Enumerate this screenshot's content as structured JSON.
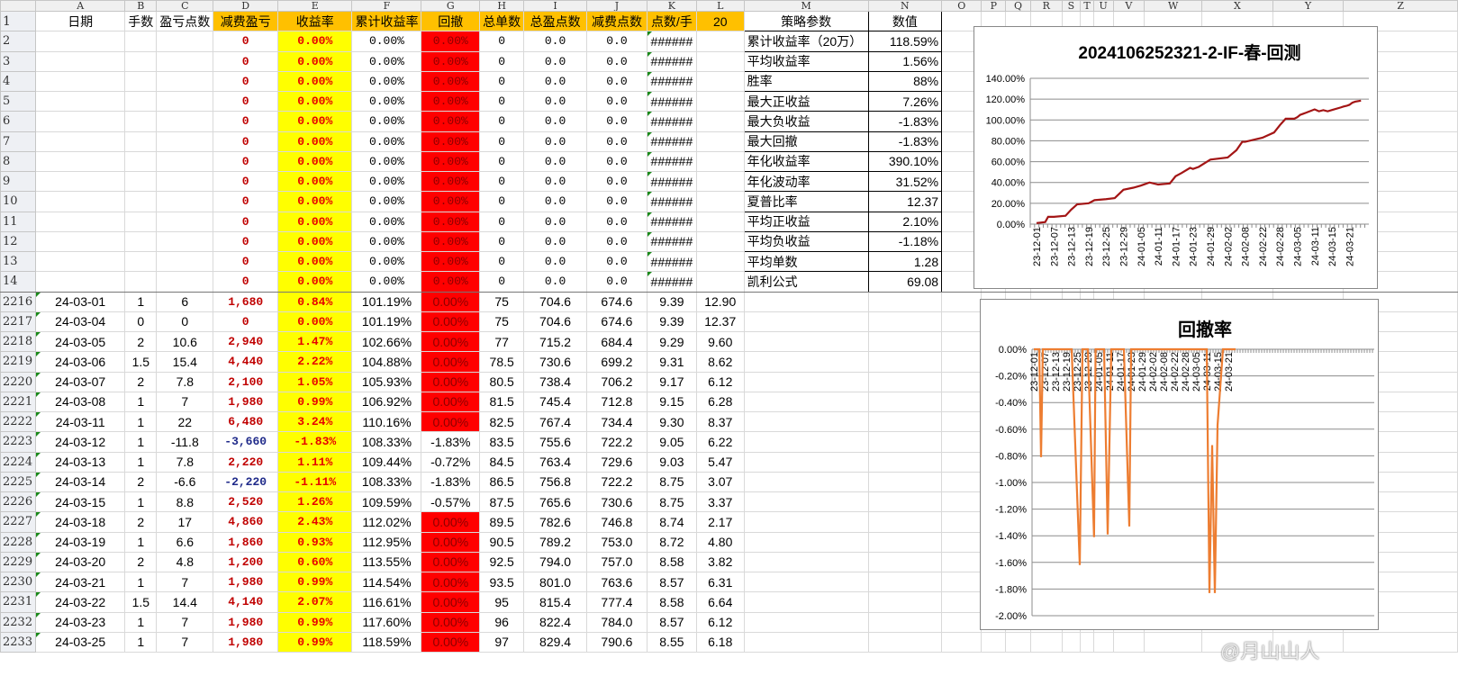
{
  "columns": [
    "A",
    "B",
    "C",
    "D",
    "E",
    "F",
    "G",
    "H",
    "I",
    "J",
    "K",
    "L",
    "M",
    "N",
    "O",
    "P",
    "Q",
    "R",
    "S",
    "T",
    "U",
    "V",
    "W",
    "X",
    "Y",
    "Z"
  ],
  "header_row": {
    "row": "1",
    "cells": [
      "日期",
      "手数",
      "盈亏点数",
      "减费盈亏",
      "收益率",
      "累计收益率",
      "回撤",
      "总单数",
      "总盈点数",
      "减费点数",
      "点数/手",
      "20"
    ]
  },
  "params": {
    "header": [
      "策略参数",
      "数值"
    ],
    "items": [
      {
        "label": "累计收益率（20万）",
        "value": "118.59%"
      },
      {
        "label": "平均收益率",
        "value": "1.56%"
      },
      {
        "label": "胜率",
        "value": "88%"
      },
      {
        "label": "最大正收益",
        "value": "7.26%"
      },
      {
        "label": "最大负收益",
        "value": "-1.83%"
      },
      {
        "label": "最大回撤",
        "value": "-1.83%"
      },
      {
        "label": "年化收益率",
        "value": "390.10%"
      },
      {
        "label": "年化波动率",
        "value": "31.52%"
      },
      {
        "label": "夏普比率",
        "value": "12.37"
      },
      {
        "label": "平均正收益",
        "value": "2.10%"
      },
      {
        "label": "平均负收益",
        "value": "-1.18%"
      },
      {
        "label": "平均单数",
        "value": "1.28"
      },
      {
        "label": "凯利公式",
        "value": "69.08"
      }
    ]
  },
  "top_rows": [
    {
      "row": "2",
      "cells": [
        "",
        "",
        "",
        "0",
        "0.00%",
        "0.00%",
        "0.00%",
        "0",
        "0.0",
        "0.0",
        "######",
        ""
      ]
    },
    {
      "row": "3",
      "cells": [
        "",
        "",
        "",
        "0",
        "0.00%",
        "0.00%",
        "0.00%",
        "0",
        "0.0",
        "0.0",
        "######",
        ""
      ]
    },
    {
      "row": "4",
      "cells": [
        "",
        "",
        "",
        "0",
        "0.00%",
        "0.00%",
        "0.00%",
        "0",
        "0.0",
        "0.0",
        "######",
        ""
      ]
    },
    {
      "row": "5",
      "cells": [
        "",
        "",
        "",
        "0",
        "0.00%",
        "0.00%",
        "0.00%",
        "0",
        "0.0",
        "0.0",
        "######",
        ""
      ]
    },
    {
      "row": "6",
      "cells": [
        "",
        "",
        "",
        "0",
        "0.00%",
        "0.00%",
        "0.00%",
        "0",
        "0.0",
        "0.0",
        "######",
        ""
      ]
    },
    {
      "row": "7",
      "cells": [
        "",
        "",
        "",
        "0",
        "0.00%",
        "0.00%",
        "0.00%",
        "0",
        "0.0",
        "0.0",
        "######",
        ""
      ]
    },
    {
      "row": "8",
      "cells": [
        "",
        "",
        "",
        "0",
        "0.00%",
        "0.00%",
        "0.00%",
        "0",
        "0.0",
        "0.0",
        "######",
        ""
      ]
    },
    {
      "row": "9",
      "cells": [
        "",
        "",
        "",
        "0",
        "0.00%",
        "0.00%",
        "0.00%",
        "0",
        "0.0",
        "0.0",
        "######",
        ""
      ]
    },
    {
      "row": "10",
      "cells": [
        "",
        "",
        "",
        "0",
        "0.00%",
        "0.00%",
        "0.00%",
        "0",
        "0.0",
        "0.0",
        "######",
        ""
      ]
    },
    {
      "row": "11",
      "cells": [
        "",
        "",
        "",
        "0",
        "0.00%",
        "0.00%",
        "0.00%",
        "0",
        "0.0",
        "0.0",
        "######",
        ""
      ]
    },
    {
      "row": "12",
      "cells": [
        "",
        "",
        "",
        "0",
        "0.00%",
        "0.00%",
        "0.00%",
        "0",
        "0.0",
        "0.0",
        "######",
        ""
      ]
    },
    {
      "row": "13",
      "cells": [
        "",
        "",
        "",
        "0",
        "0.00%",
        "0.00%",
        "0.00%",
        "0",
        "0.0",
        "0.0",
        "######",
        ""
      ]
    },
    {
      "row": "14",
      "cells": [
        "",
        "",
        "",
        "0",
        "0.00%",
        "0.00%",
        "0.00%",
        "0",
        "0.0",
        "0.0",
        "######",
        ""
      ]
    }
  ],
  "bottom_rows": [
    {
      "row": "2216",
      "cells": [
        "24-03-01",
        "1",
        "6",
        "1,680",
        "0.84%",
        "101.19%",
        "0.00%",
        "75",
        "704.6",
        "674.6",
        "9.39",
        "12.90"
      ]
    },
    {
      "row": "2217",
      "cells": [
        "24-03-04",
        "0",
        "0",
        "0",
        "0.00%",
        "101.19%",
        "0.00%",
        "75",
        "704.6",
        "674.6",
        "9.39",
        "12.37"
      ]
    },
    {
      "row": "2218",
      "cells": [
        "24-03-05",
        "2",
        "10.6",
        "2,940",
        "1.47%",
        "102.66%",
        "0.00%",
        "77",
        "715.2",
        "684.4",
        "9.29",
        "9.60"
      ]
    },
    {
      "row": "2219",
      "cells": [
        "24-03-06",
        "1.5",
        "15.4",
        "4,440",
        "2.22%",
        "104.88%",
        "0.00%",
        "78.5",
        "730.6",
        "699.2",
        "9.31",
        "8.62"
      ]
    },
    {
      "row": "2220",
      "cells": [
        "24-03-07",
        "2",
        "7.8",
        "2,100",
        "1.05%",
        "105.93%",
        "0.00%",
        "80.5",
        "738.4",
        "706.2",
        "9.17",
        "6.12"
      ]
    },
    {
      "row": "2221",
      "cells": [
        "24-03-08",
        "1",
        "7",
        "1,980",
        "0.99%",
        "106.92%",
        "0.00%",
        "81.5",
        "745.4",
        "712.8",
        "9.15",
        "6.28"
      ]
    },
    {
      "row": "2222",
      "cells": [
        "24-03-11",
        "1",
        "22",
        "6,480",
        "3.24%",
        "110.16%",
        "0.00%",
        "82.5",
        "767.4",
        "734.4",
        "9.30",
        "8.37"
      ]
    },
    {
      "row": "2223",
      "cells": [
        "24-03-12",
        "1",
        "-11.8",
        "-3,660",
        "-1.83%",
        "108.33%",
        "-1.83%",
        "83.5",
        "755.6",
        "722.2",
        "9.05",
        "6.22"
      ]
    },
    {
      "row": "2224",
      "cells": [
        "24-03-13",
        "1",
        "7.8",
        "2,220",
        "1.11%",
        "109.44%",
        "-0.72%",
        "84.5",
        "763.4",
        "729.6",
        "9.03",
        "5.47"
      ]
    },
    {
      "row": "2225",
      "cells": [
        "24-03-14",
        "2",
        "-6.6",
        "-2,220",
        "-1.11%",
        "108.33%",
        "-1.83%",
        "86.5",
        "756.8",
        "722.2",
        "8.75",
        "3.07"
      ]
    },
    {
      "row": "2226",
      "cells": [
        "24-03-15",
        "1",
        "8.8",
        "2,520",
        "1.26%",
        "109.59%",
        "-0.57%",
        "87.5",
        "765.6",
        "730.6",
        "8.75",
        "3.37"
      ]
    },
    {
      "row": "2227",
      "cells": [
        "24-03-18",
        "2",
        "17",
        "4,860",
        "2.43%",
        "112.02%",
        "0.00%",
        "89.5",
        "782.6",
        "746.8",
        "8.74",
        "2.17"
      ]
    },
    {
      "row": "2228",
      "cells": [
        "24-03-19",
        "1",
        "6.6",
        "1,860",
        "0.93%",
        "112.95%",
        "0.00%",
        "90.5",
        "789.2",
        "753.0",
        "8.72",
        "4.80"
      ]
    },
    {
      "row": "2229",
      "cells": [
        "24-03-20",
        "2",
        "4.8",
        "1,200",
        "0.60%",
        "113.55%",
        "0.00%",
        "92.5",
        "794.0",
        "757.0",
        "8.58",
        "3.82"
      ]
    },
    {
      "row": "2230",
      "cells": [
        "24-03-21",
        "1",
        "7",
        "1,980",
        "0.99%",
        "114.54%",
        "0.00%",
        "93.5",
        "801.0",
        "763.6",
        "8.57",
        "6.31"
      ]
    },
    {
      "row": "2231",
      "cells": [
        "24-03-22",
        "1.5",
        "14.4",
        "4,140",
        "2.07%",
        "116.61%",
        "0.00%",
        "95",
        "815.4",
        "777.4",
        "8.58",
        "6.64"
      ]
    },
    {
      "row": "2232",
      "cells": [
        "24-03-23",
        "1",
        "7",
        "1,980",
        "0.99%",
        "117.60%",
        "0.00%",
        "96",
        "822.4",
        "784.0",
        "8.57",
        "6.12"
      ]
    },
    {
      "row": "2233",
      "cells": [
        "24-03-25",
        "1",
        "7",
        "1,980",
        "0.99%",
        "118.59%",
        "0.00%",
        "97",
        "829.4",
        "790.6",
        "8.55",
        "6.18"
      ]
    }
  ],
  "chart_data": [
    {
      "type": "line",
      "title": "2024106252321-2-IF-春-回测",
      "line_color": "#a31515",
      "grid": true,
      "ylim": [
        0,
        140
      ],
      "y_ticks": [
        "0.00%",
        "20.00%",
        "40.00%",
        "60.00%",
        "80.00%",
        "100.00%",
        "120.00%",
        "140.00%"
      ],
      "x_labels": [
        "23-12-01",
        "23-12-07",
        "23-12-13",
        "23-12-19",
        "23-12-25",
        "23-12-29",
        "24-01-05",
        "24-01-11",
        "24-01-17",
        "24-01-23",
        "24-01-29",
        "24-02-02",
        "24-02-08",
        "24-02-22",
        "24-02-28",
        "24-03-05",
        "24-03-11",
        "24-03-15",
        "24-03-21"
      ],
      "points": [
        [
          "23-12-01",
          1
        ],
        [
          "23-12-04",
          2
        ],
        [
          "23-12-05",
          7
        ],
        [
          "23-12-07",
          7
        ],
        [
          "23-12-11",
          8
        ],
        [
          "23-12-13",
          14
        ],
        [
          "23-12-15",
          19
        ],
        [
          "23-12-19",
          20
        ],
        [
          "23-12-21",
          23
        ],
        [
          "23-12-25",
          24
        ],
        [
          "23-12-27",
          25
        ],
        [
          "23-12-29",
          33
        ],
        [
          "24-01-02",
          35
        ],
        [
          "24-01-05",
          37
        ],
        [
          "24-01-08",
          40
        ],
        [
          "24-01-11",
          38
        ],
        [
          "24-01-15",
          39
        ],
        [
          "24-01-17",
          46
        ],
        [
          "24-01-19",
          49
        ],
        [
          "24-01-22",
          54
        ],
        [
          "24-01-23",
          53
        ],
        [
          "24-01-25",
          55
        ],
        [
          "24-01-29",
          62
        ],
        [
          "24-02-02",
          64
        ],
        [
          "24-02-05",
          71
        ],
        [
          "24-02-07",
          79
        ],
        [
          "24-02-08",
          79
        ],
        [
          "24-02-22",
          83
        ],
        [
          "24-02-26",
          88
        ],
        [
          "24-02-28",
          95
        ],
        [
          "24-03-01",
          101.19
        ],
        [
          "24-03-04",
          101.19
        ],
        [
          "24-03-05",
          102.66
        ],
        [
          "24-03-06",
          104.88
        ],
        [
          "24-03-07",
          105.93
        ],
        [
          "24-03-08",
          106.92
        ],
        [
          "24-03-11",
          110.16
        ],
        [
          "24-03-12",
          108.33
        ],
        [
          "24-03-13",
          109.44
        ],
        [
          "24-03-14",
          108.33
        ],
        [
          "24-03-15",
          109.59
        ],
        [
          "24-03-18",
          112.02
        ],
        [
          "24-03-19",
          112.95
        ],
        [
          "24-03-20",
          113.55
        ],
        [
          "24-03-21",
          114.54
        ],
        [
          "24-03-22",
          116.61
        ],
        [
          "24-03-23",
          117.6
        ],
        [
          "24-03-25",
          118.59
        ]
      ]
    },
    {
      "type": "line",
      "title": "回撤率",
      "line_color": "#ed7d31",
      "grid": true,
      "ylim": [
        -2,
        0
      ],
      "y_ticks": [
        "0.00%",
        "-0.20%",
        "-0.40%",
        "-0.60%",
        "-0.80%",
        "-1.00%",
        "-1.20%",
        "-1.40%",
        "-1.60%",
        "-1.80%",
        "-2.00%"
      ],
      "x_labels": [
        "23-12-01",
        "23-12-07",
        "23-12-13",
        "23-12-19",
        "23-12-25",
        "23-12-29",
        "24-01-05",
        "24-01-11",
        "24-01-17",
        "24-01-23",
        "24-01-29",
        "24-02-02",
        "24-02-08",
        "24-02-22",
        "24-02-28",
        "24-03-05",
        "24-03-11",
        "24-03-15",
        "24-03-21"
      ],
      "points": [
        [
          "23-12-01",
          0
        ],
        [
          "23-12-04",
          0
        ],
        [
          "23-12-05",
          -0.81
        ],
        [
          "23-12-06",
          0
        ],
        [
          "23-12-22",
          0
        ],
        [
          "23-12-26",
          -1.62
        ],
        [
          "23-12-27",
          0
        ],
        [
          "23-12-29",
          0
        ],
        [
          "24-01-02",
          -1.41
        ],
        [
          "24-01-03",
          0
        ],
        [
          "24-01-08",
          0
        ],
        [
          "24-01-10",
          -1.39
        ],
        [
          "24-01-12",
          0
        ],
        [
          "24-01-19",
          0
        ],
        [
          "24-01-22",
          -1.33
        ],
        [
          "24-01-23",
          0
        ],
        [
          "24-03-11",
          0
        ],
        [
          "24-03-12",
          -1.83
        ],
        [
          "24-03-13",
          -0.72
        ],
        [
          "24-03-14",
          -1.83
        ],
        [
          "24-03-15",
          -0.57
        ],
        [
          "24-03-18",
          0
        ],
        [
          "24-03-25",
          0
        ]
      ]
    }
  ],
  "watermark": "@月山山人"
}
